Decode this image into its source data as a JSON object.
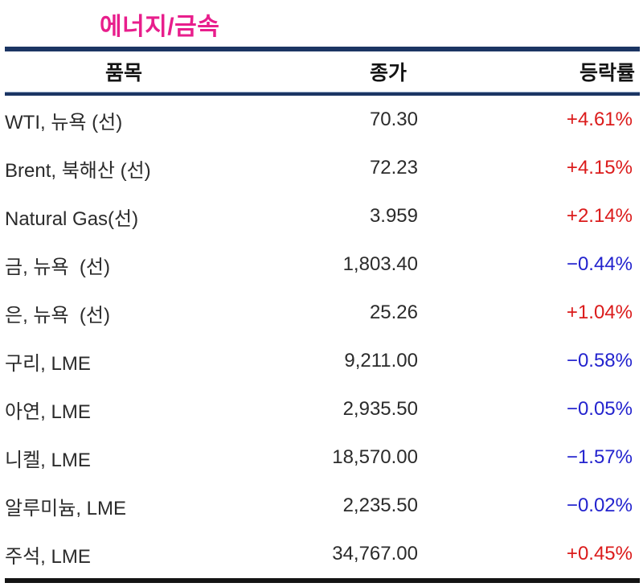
{
  "title": "에너지/금속",
  "colors": {
    "title": "#E81E8C",
    "up": "#DB1B1B",
    "down": "#2323CE",
    "text": "#2B2B2B",
    "header_text": "#141414",
    "rule_navy": "#1B3563",
    "rule_black": "#141414",
    "background": "#FFFFFF"
  },
  "table": {
    "headers": {
      "item": "품목",
      "close": "종가",
      "change": "등락률"
    },
    "rows": [
      {
        "item": "WTI, 뉴욕 (선)",
        "close": "70.30",
        "change": "+4.61%",
        "direction": "up"
      },
      {
        "item": "Brent, 북해산 (선)",
        "close": "72.23",
        "change": "+4.15%",
        "direction": "up"
      },
      {
        "item": "Natural Gas(선)",
        "close": "3.959",
        "change": "+2.14%",
        "direction": "up"
      },
      {
        "item": "금, 뉴욕  (선)",
        "close": "1,803.40",
        "change": "−0.44%",
        "direction": "down"
      },
      {
        "item": "은, 뉴욕  (선)",
        "close": "25.26",
        "change": "+1.04%",
        "direction": "up"
      },
      {
        "item": "구리, LME",
        "close": "9,211.00",
        "change": "−0.58%",
        "direction": "down"
      },
      {
        "item": "아연, LME",
        "close": "2,935.50",
        "change": "−0.05%",
        "direction": "down"
      },
      {
        "item": "니켈, LME",
        "close": "18,570.00",
        "change": "−1.57%",
        "direction": "down"
      },
      {
        "item": "알루미늄, LME",
        "close": "2,235.50",
        "change": "−0.02%",
        "direction": "down"
      },
      {
        "item": "주석, LME",
        "close": "34,767.00",
        "change": "+0.45%",
        "direction": "up"
      }
    ]
  },
  "chart_data": {
    "type": "table",
    "title": "에너지/금속",
    "columns": [
      "품목",
      "종가",
      "등락률"
    ],
    "rows": [
      [
        "WTI, 뉴욕 (선)",
        70.3,
        "+4.61%"
      ],
      [
        "Brent, 북해산 (선)",
        72.23,
        "+4.15%"
      ],
      [
        "Natural Gas(선)",
        3.959,
        "+2.14%"
      ],
      [
        "금, 뉴욕 (선)",
        1803.4,
        "-0.44%"
      ],
      [
        "은, 뉴욕 (선)",
        25.26,
        "+1.04%"
      ],
      [
        "구리, LME",
        9211.0,
        "-0.58%"
      ],
      [
        "아연, LME",
        2935.5,
        "-0.05%"
      ],
      [
        "니켈, LME",
        18570.0,
        "-1.57%"
      ],
      [
        "알루미늄, LME",
        2235.5,
        "-0.02%"
      ],
      [
        "주석, LME",
        34767.0,
        "+0.45%"
      ]
    ],
    "notes": "positive changes shown in red, negative in blue"
  }
}
